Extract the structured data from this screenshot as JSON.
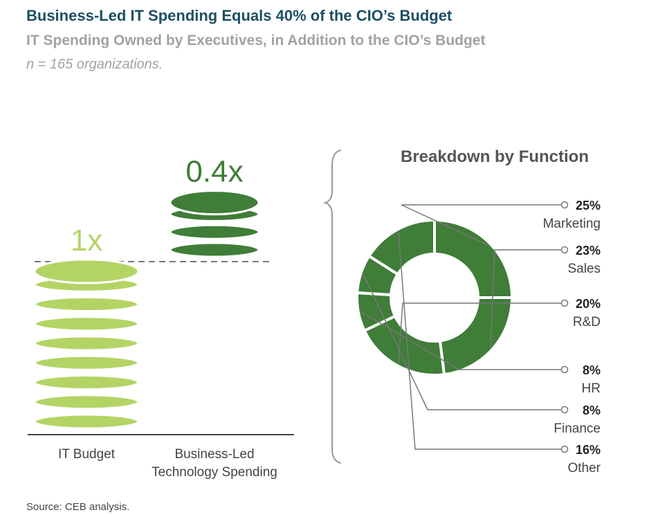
{
  "header": {
    "title": "Business-Led IT Spending Equals 40% of the CIO’s Budget",
    "subtitle": "IT Spending Owned by Executives, in Addition to the CIO’s Budget",
    "sample": "n = 165 organizations."
  },
  "footer": {
    "source": "Source: CEB analysis."
  },
  "colors": {
    "light_green": "#b3d465",
    "dark_green": "#3f7d38",
    "line_grey": "#777777",
    "text_grey": "#444444",
    "title_blue": "#1e4e63"
  },
  "chart_data": [
    {
      "type": "bar",
      "categories": [
        "IT Budget",
        "Business-Led Technology Spending"
      ],
      "category_lines": [
        [
          "IT Budget"
        ],
        [
          "Business-Led",
          "Technology Spending"
        ]
      ],
      "values": [
        1,
        0.4
      ],
      "value_labels": [
        "1x",
        "0.4x"
      ],
      "unit": "x (multiple of CIO’s budget)",
      "style": "stacked coins",
      "reference_line": {
        "value": 1,
        "style": "dashed"
      }
    },
    {
      "type": "pie",
      "style": "donut",
      "title": "Breakdown by Function",
      "slices": [
        {
          "label": "Marketing",
          "value": 25,
          "value_label": "25%"
        },
        {
          "label": "Sales",
          "value": 23,
          "value_label": "23%"
        },
        {
          "label": "R&D",
          "value": 20,
          "value_label": "20%"
        },
        {
          "label": "HR",
          "value": 8,
          "value_label": "8%"
        },
        {
          "label": "Finance",
          "value": 8,
          "value_label": "8%"
        },
        {
          "label": "Other",
          "value": 16,
          "value_label": "16%"
        }
      ]
    }
  ]
}
